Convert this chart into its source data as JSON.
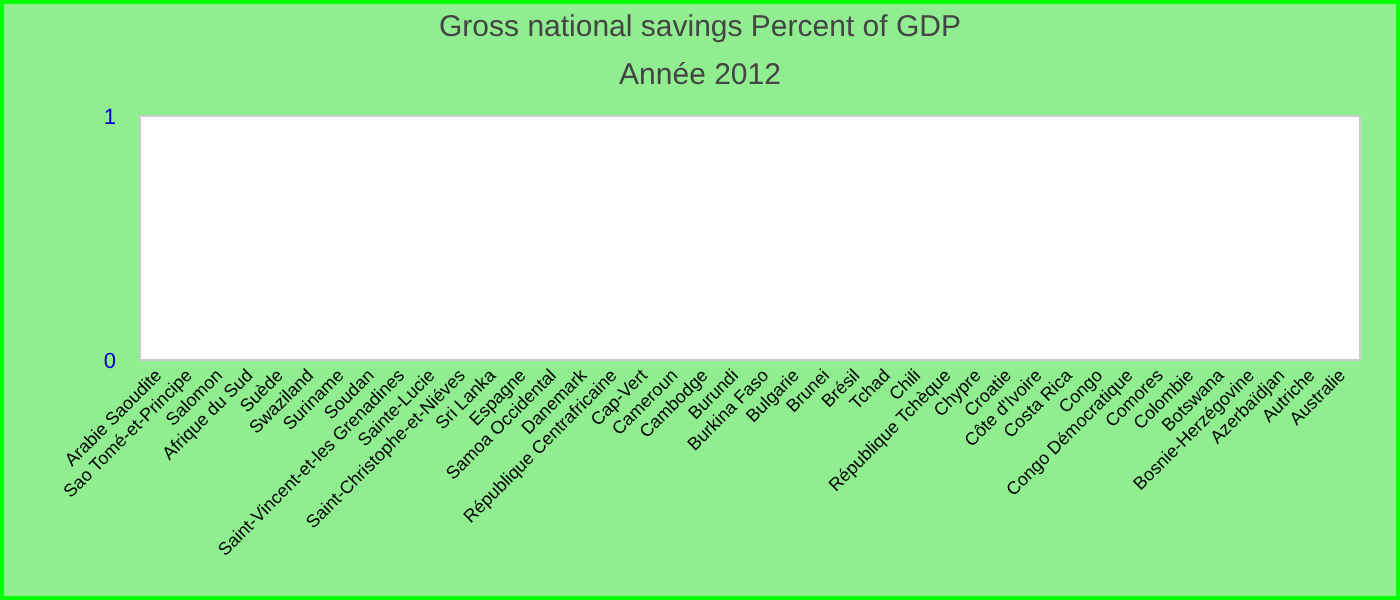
{
  "chart_data": {
    "type": "bar",
    "title": "Gross national savings  Percent of GDP",
    "subtitle": "Année 2012",
    "categories": [
      "Arabie Saoudite",
      "Sao Tomé-et-Principe",
      "Salomon",
      "Afrique du Sud",
      "Suède",
      "Swaziland",
      "Suriname",
      "Soudan",
      "Saint-Vincent-et-les Grenadines",
      "Sainte-Lucie",
      "Saint-Christophe-et-Niéves",
      "Sri Lanka",
      "Espagne",
      "Samoa Occidental",
      "Danemark",
      "République Centrafricaine",
      "Cap-Vert",
      "Cameroun",
      "Cambodge",
      "Burundi",
      "Burkina Faso",
      "Bulgarie",
      "Brunei",
      "Brésil",
      "Tchad",
      "Chili",
      "République Tchèque",
      "Chypre",
      "Croatie",
      "Côte d'Ivoire",
      "Costa Rica",
      "Congo",
      "Congo Démocratique",
      "Comores",
      "Colombie",
      "Botswana",
      "Bosnie-Herzégovine",
      "Azerbaïdjan",
      "Autriche",
      "Australie"
    ],
    "values": [
      null,
      null,
      null,
      null,
      null,
      null,
      null,
      null,
      null,
      null,
      null,
      null,
      null,
      null,
      null,
      null,
      null,
      null,
      null,
      null,
      null,
      null,
      null,
      null,
      null,
      null,
      null,
      null,
      null,
      null,
      null,
      null,
      null,
      null,
      null,
      null,
      null,
      null,
      null,
      null
    ],
    "ylim": [
      0,
      1
    ],
    "yticks": [
      0,
      1
    ]
  }
}
